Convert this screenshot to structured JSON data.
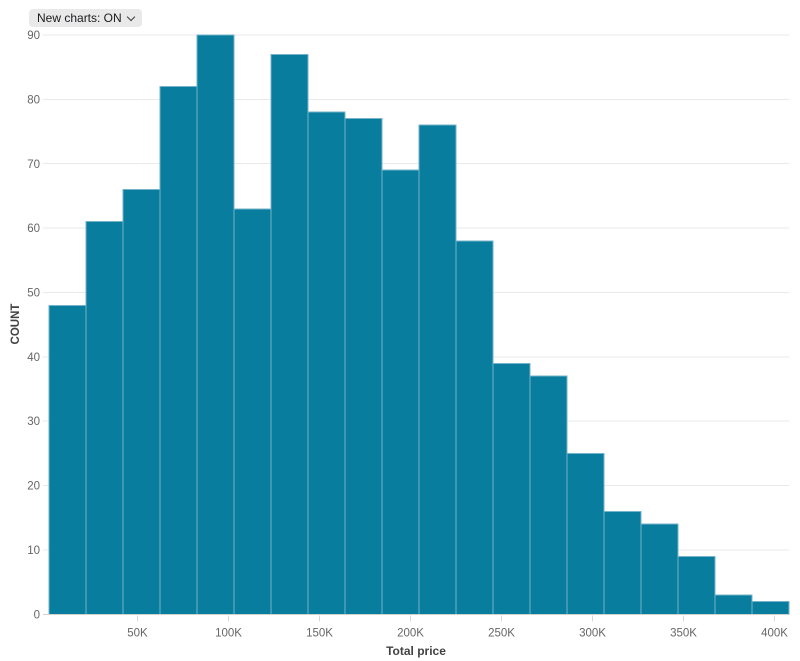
{
  "controls": {
    "new_charts_label": "New charts: ON",
    "chevron_icon": "chevron-down"
  },
  "chart_data": {
    "type": "bar",
    "subtype": "histogram",
    "title": "",
    "xlabel": "Total price",
    "ylabel": "COUNT",
    "bin_width": 20000,
    "bin_start": 0,
    "values": [
      48,
      61,
      66,
      82,
      90,
      63,
      87,
      78,
      77,
      69,
      76,
      58,
      39,
      37,
      25,
      16,
      14,
      9,
      3,
      2
    ],
    "x_tick_labels": [
      "50K",
      "100K",
      "150K",
      "200K",
      "250K",
      "300K",
      "350K",
      "400K"
    ],
    "x_tick_values": [
      50000,
      100000,
      150000,
      200000,
      250000,
      300000,
      350000,
      400000
    ],
    "y_ticks": [
      0,
      10,
      20,
      30,
      40,
      50,
      60,
      70,
      80,
      90
    ],
    "ylim": [
      0,
      90
    ],
    "grid": true,
    "legend": false,
    "colors": {
      "bar_fill": "#087d9d",
      "bar_stroke": "#74b3c9",
      "gridline": "#e9e9e9",
      "axis_line": "#d1d1d1",
      "tick_mark": "#d7d7d7",
      "tick_label": "#666666",
      "axis_title": "#424242",
      "control_bg": "#e9e9ea",
      "control_text": "#1b1b1d"
    }
  }
}
